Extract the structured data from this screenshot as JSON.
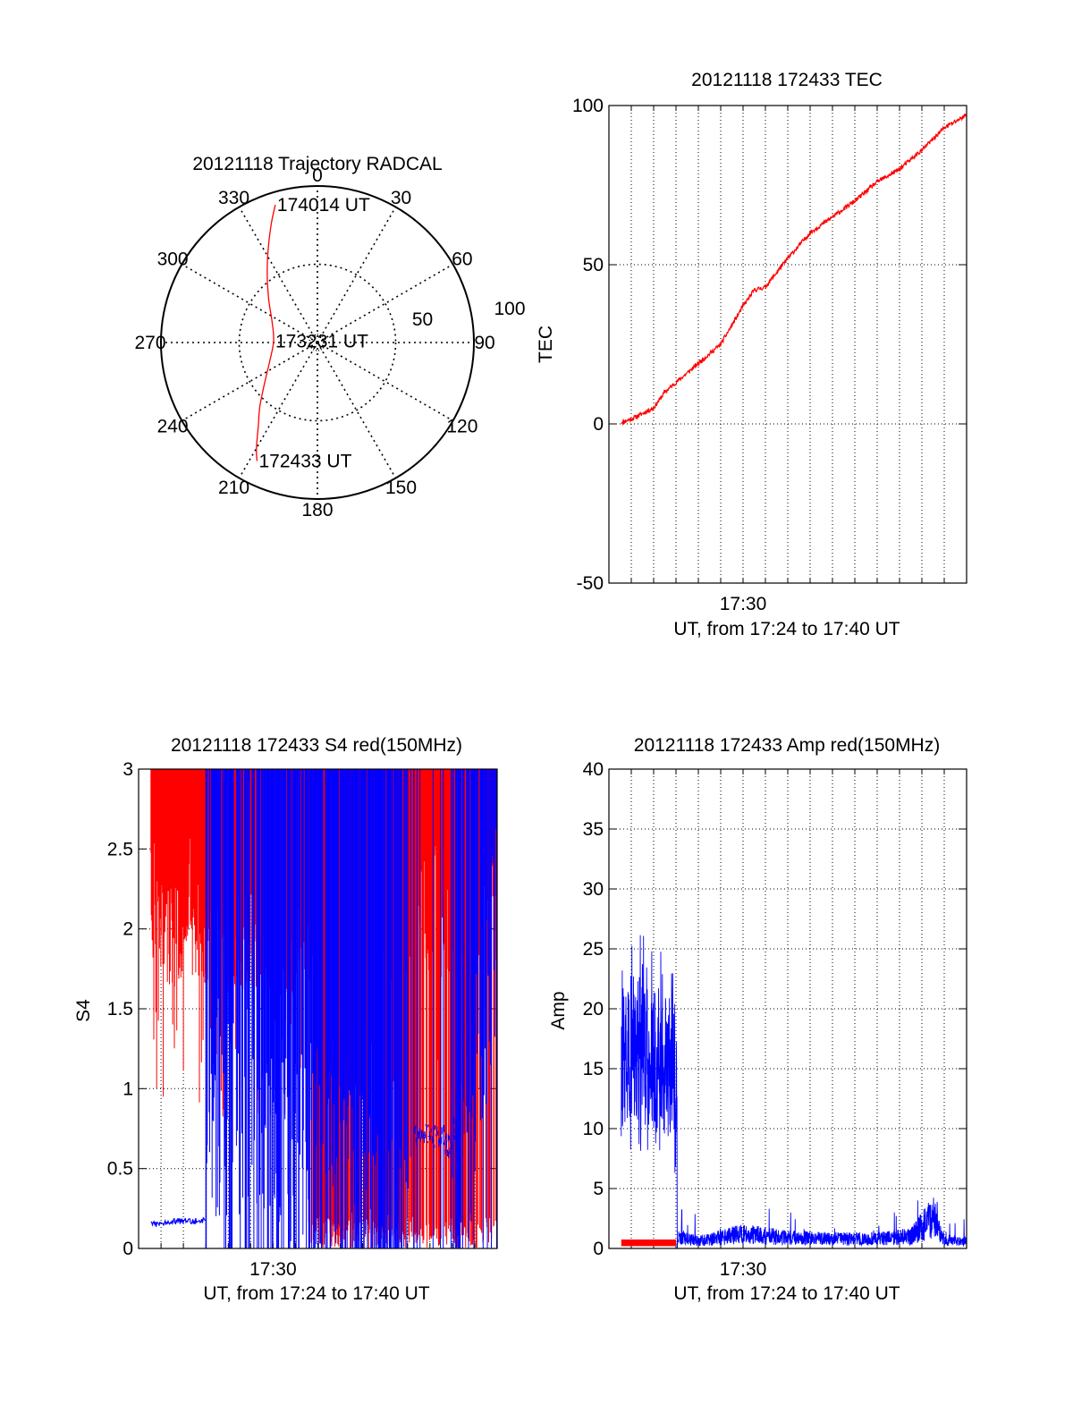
{
  "colors": {
    "red": "#ff0000",
    "blue": "#0000ff",
    "axis": "#000000",
    "grid": "#000000"
  },
  "chart_data": [
    {
      "id": "trajectory",
      "type": "polar",
      "title": "20121118 Trajectory RADCAL",
      "angle_labels": [
        "0",
        "30",
        "60",
        "90",
        "120",
        "150",
        "180",
        "210",
        "240",
        "270",
        "300",
        "330"
      ],
      "radial_ticks": [
        50,
        100
      ],
      "radial_range": [
        0,
        100
      ],
      "grid": true,
      "series": [
        {
          "color": "red",
          "points": [
            [
              207,
              85
            ],
            [
              210,
              78
            ],
            [
              215,
              66
            ],
            [
              222,
              55
            ],
            [
              232,
              43
            ],
            [
              248,
              33
            ],
            [
              272,
              28
            ],
            [
              295,
              32
            ],
            [
              312,
              42
            ],
            [
              325,
              56
            ],
            [
              333,
              69
            ],
            [
              339,
              82
            ],
            [
              343,
              92
            ]
          ]
        }
      ],
      "annotations": [
        {
          "text": "172433 UT",
          "az": 207,
          "r": 85
        },
        {
          "text": "173231 UT",
          "az": 272,
          "r": 28
        },
        {
          "text": "174014 UT",
          "az": 343,
          "r": 92
        }
      ]
    },
    {
      "id": "tec",
      "type": "line",
      "title": "20121118 172433 TEC",
      "ylabel": "TEC",
      "xlabel": "UT, from 17:24 to 17:40 UT",
      "x_tick_labels": [
        {
          "t": "17:30",
          "label": "17:30"
        }
      ],
      "xlim": [
        "17:24:00",
        "17:40:00"
      ],
      "ylim": [
        -50,
        100
      ],
      "y_ticks": [
        -50,
        0,
        50,
        100
      ],
      "grid": true,
      "series": [
        {
          "color": "red",
          "x": [
            "17:24:33",
            "17:25:00",
            "17:26:00",
            "17:26:30",
            "17:27:00",
            "17:28:00",
            "17:29:00",
            "17:30:00",
            "17:30:30",
            "17:31:00",
            "17:32:00",
            "17:33:00",
            "17:34:00",
            "17:35:00",
            "17:36:00",
            "17:37:00",
            "17:38:00",
            "17:39:00",
            "17:40:00"
          ],
          "y": [
            0.5,
            1.5,
            5,
            10,
            13,
            19,
            25,
            37,
            42,
            43,
            52,
            60,
            65,
            70,
            76,
            80,
            86,
            93,
            97
          ]
        }
      ]
    },
    {
      "id": "s4",
      "type": "line",
      "title": "20121118 172433 S4 red(150MHz)",
      "ylabel": "S4",
      "xlabel": "UT, from 17:24 to 17:40 UT",
      "x_tick_labels": [
        {
          "t": "17:30",
          "label": "17:30"
        }
      ],
      "xlim": [
        "17:24:00",
        "17:40:00"
      ],
      "ylim": [
        0,
        3
      ],
      "y_ticks": [
        0,
        0.5,
        1,
        1.5,
        2,
        2.5,
        3
      ],
      "grid": true,
      "series": [
        {
          "color": "blue",
          "x": [
            "17:24:33",
            "17:25:30",
            "17:26:30",
            "17:27:00",
            "17:27:10",
            "17:33:00",
            "17:35:00",
            "17:37:00",
            "17:38:00",
            "17:40:00"
          ],
          "y": [
            0.15,
            0.17,
            0.17,
            0.18,
            1.6,
            1.3,
            0.7,
            0.72,
            0.65,
            2.8
          ]
        },
        {
          "color": "red",
          "x": [
            "17:24:33",
            "17:25:30",
            "17:26:30",
            "17:27:00",
            "17:33:00",
            "17:37:00",
            "17:40:00"
          ],
          "y": [
            2.7,
            2.5,
            2.6,
            2.5,
            2.4,
            2.6,
            2.5
          ]
        }
      ]
    },
    {
      "id": "amp",
      "type": "line",
      "title": "20121118 172433 Amp red(150MHz)",
      "ylabel": "Amp",
      "xlabel": "UT, from 17:24 to 17:40 UT",
      "x_tick_labels": [
        {
          "t": "17:30",
          "label": "17:30"
        }
      ],
      "xlim": [
        "17:24:00",
        "17:40:00"
      ],
      "ylim": [
        0,
        40
      ],
      "y_ticks": [
        0,
        5,
        10,
        15,
        20,
        25,
        30,
        35,
        40
      ],
      "grid": true,
      "series": [
        {
          "color": "blue",
          "x": [
            "17:24:33",
            "17:25:00",
            "17:26:00",
            "17:27:00",
            "17:27:05",
            "17:28:00",
            "17:30:00",
            "17:32:00",
            "17:34:00",
            "17:36:00",
            "17:37:30",
            "17:38:30",
            "17:39:00",
            "17:40:00"
          ],
          "y": [
            16,
            17,
            16,
            15,
            1,
            0.6,
            1.2,
            0.9,
            0.8,
            0.8,
            1,
            2.6,
            0.7,
            0.6
          ]
        },
        {
          "color": "red",
          "x": [
            "17:24:33",
            "17:27:00"
          ],
          "y": [
            0.4,
            0.4
          ]
        }
      ]
    }
  ]
}
